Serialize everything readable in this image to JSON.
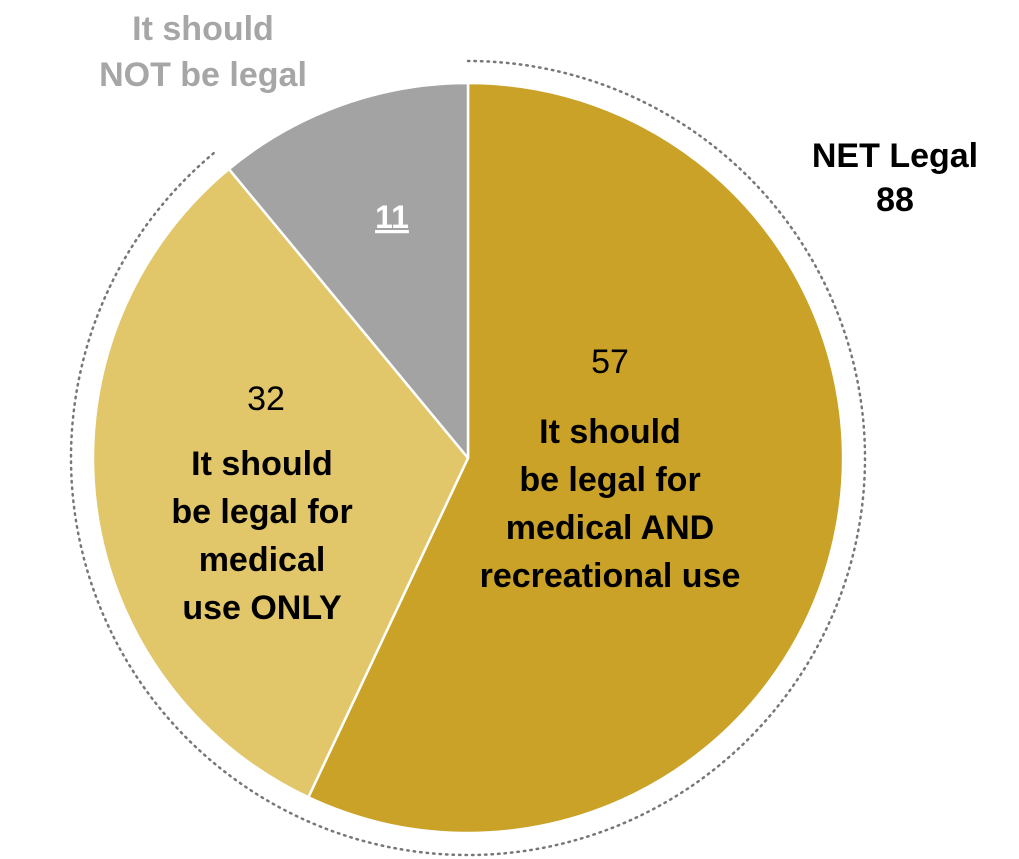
{
  "chart_data": {
    "type": "pie",
    "slices": [
      {
        "value": 57,
        "value_label": "57",
        "label_lines": [
          "It should",
          "be legal for",
          "medical AND",
          "recreational use"
        ],
        "color": "#c9a227",
        "value_color": "#000000",
        "label_color": "#000000"
      },
      {
        "value": 32,
        "value_label": "32",
        "label_lines": [
          "It should",
          "be legal for",
          "medical",
          "use ONLY"
        ],
        "color": "#e1c66a",
        "value_color": "#000000",
        "label_color": "#000000"
      },
      {
        "value": 11,
        "value_label": "11",
        "label_lines": [
          "It should",
          "NOT be legal"
        ],
        "color": "#a3a3a3",
        "value_color": "#ffffff",
        "label_color": "#a6a6a6"
      }
    ],
    "net": {
      "label": "NET Legal",
      "value": "88",
      "covers_slices": [
        0,
        1
      ]
    }
  }
}
